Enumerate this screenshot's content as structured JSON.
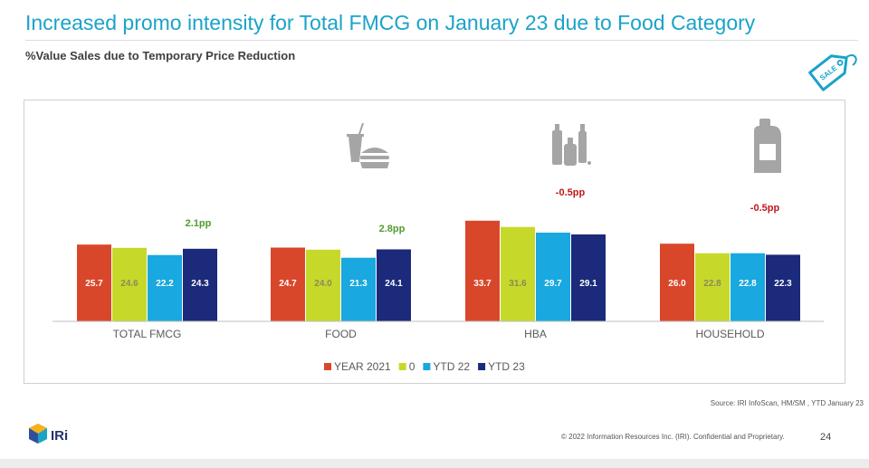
{
  "header": {
    "title": "Increased promo intensity for Total FMCG on January 23 due to Food Category",
    "subtitle": "%Value Sales due to Temporary Price Reduction"
  },
  "icons": {
    "sale_tag": "sale-tag-icon",
    "sale_tag_text": "SALE",
    "food": "burger-drink-icon",
    "hba": "toiletries-icon",
    "household": "detergent-bottle-icon"
  },
  "colors": {
    "year2021": "#d9472b",
    "zero": "#c6d92b",
    "ytd22": "#19a8df",
    "ytd23": "#1b2a7a",
    "positive_delta": "#4f9a2e",
    "negative_delta": "#c0181b",
    "title": "#1aa3c8"
  },
  "chart_data": {
    "type": "bar",
    "categories": [
      "TOTAL FMCG",
      "FOOD",
      "HBA",
      "HOUSEHOLD"
    ],
    "series": [
      {
        "name": "YEAR 2021",
        "values": [
          25.7,
          24.7,
          33.7,
          26.0
        ]
      },
      {
        "name": "0",
        "values": [
          24.6,
          24.0,
          31.6,
          22.8
        ]
      },
      {
        "name": "YTD 22",
        "values": [
          22.2,
          21.3,
          29.7,
          22.8
        ]
      },
      {
        "name": "YTD 23",
        "values": [
          24.3,
          24.1,
          29.1,
          22.3
        ]
      }
    ],
    "annotations": [
      "2.1pp",
      "2.8pp",
      "-0.5pp",
      "-0.5pp"
    ],
    "legend_position": "bottom",
    "ylim": [
      0,
      40
    ],
    "grid": false
  },
  "footer": {
    "source": "Source: IRI InfoScan, HM/SM , YTD January 23",
    "logo_text": "IRi",
    "copyright": "© 2022 Information Resources Inc. (IRI). Confidential and Proprietary.",
    "page_number": "24"
  }
}
